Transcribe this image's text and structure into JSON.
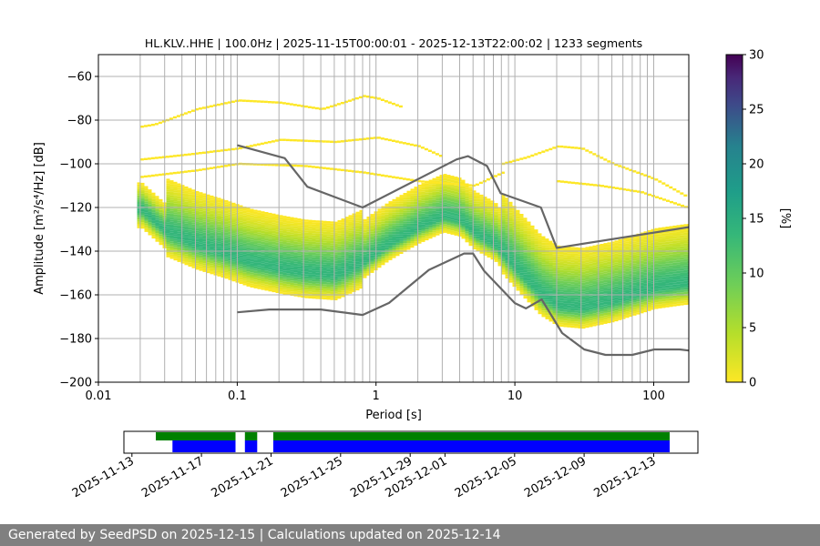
{
  "chart_data": {
    "type": "heatmap",
    "title": "HL.KLV..HHE | 100.0Hz | 2025-11-15T00:00:01 - 2025-12-13T22:00:02 | 1233 segments",
    "xlabel": "Period [s]",
    "ylabel": "Amplitude [m²/s⁴/Hz] [dB]",
    "x_scale": "log",
    "xlim": [
      0.01,
      179
    ],
    "ylim": [
      -200,
      -50
    ],
    "x_ticks": [
      {
        "v": 0.01,
        "label": "0.01"
      },
      {
        "v": 0.1,
        "label": "0.1"
      },
      {
        "v": 1,
        "label": "1"
      },
      {
        "v": 10,
        "label": "10"
      },
      {
        "v": 100,
        "label": "100"
      }
    ],
    "y_ticks": [
      -60,
      -80,
      -100,
      -120,
      -140,
      -160,
      -180,
      -200
    ],
    "grid": true,
    "colorbar": {
      "label": "[%]",
      "min": 0,
      "max": 30,
      "ticks": [
        0,
        5,
        10,
        15,
        20,
        25,
        30
      ]
    },
    "mode_curve": {
      "period": [
        0.02,
        0.03,
        0.05,
        0.08,
        0.12,
        0.2,
        0.3,
        0.5,
        0.8,
        1.2,
        2,
        3,
        4,
        5,
        7,
        10,
        15,
        20,
        30,
        50,
        100,
        170
      ],
      "db": [
        -121,
        -131,
        -137,
        -141,
        -145,
        -148,
        -150,
        -151,
        -145,
        -137,
        -129,
        -124,
        -126,
        -132,
        -137,
        -148,
        -160,
        -165,
        -166,
        -163,
        -157,
        -155
      ]
    },
    "nlnm": {
      "period": [
        0.1,
        0.17,
        0.4,
        0.8,
        1.24,
        2.4,
        4.3,
        5,
        6,
        10,
        12,
        15.6,
        21.9,
        31.6,
        45,
        70,
        101,
        154,
        179
      ],
      "db": [
        -168,
        -166.7,
        -166.7,
        -169.2,
        -163.7,
        -148.6,
        -141.1,
        -141.1,
        -149,
        -163.8,
        -166.2,
        -162.1,
        -177.5,
        -185,
        -187.5,
        -187.5,
        -185,
        -185,
        -185.5
      ]
    },
    "nhnm": {
      "period": [
        0.1,
        0.22,
        0.32,
        0.8,
        3.8,
        4.6,
        6.3,
        7.9,
        15.4,
        20,
        179
      ],
      "db": [
        -91.5,
        -97.4,
        -110.5,
        -120,
        -98,
        -96.5,
        -101,
        -113.5,
        -120,
        -138.5,
        -129
      ]
    },
    "availability": {
      "x_ticks": [
        "2025-11-13",
        "2025-11-17",
        "2025-11-21",
        "2025-11-25",
        "2025-11-29",
        "2025-12-01",
        "2025-12-05",
        "2025-12-09",
        "2025-12-13"
      ],
      "x_range": [
        "2025-11-12T13:00",
        "2025-12-15T13:00"
      ],
      "data_ranges": [
        [
          "2025-11-14T09:00",
          "2025-11-18T23:00"
        ],
        [
          "2025-11-19T12:00",
          "2025-11-20T05:00"
        ],
        [
          "2025-11-21T03:00",
          "2025-12-13T22:00"
        ]
      ],
      "psd_ranges": [
        [
          "2025-11-15T08:00",
          "2025-11-18T23:00"
        ],
        [
          "2025-11-19T12:00",
          "2025-11-20T05:00"
        ],
        [
          "2025-11-21T03:00",
          "2025-12-13T22:00"
        ]
      ],
      "colors": {
        "data": "#008000",
        "psd": "#0000ff"
      }
    }
  },
  "footer": {
    "text": "Generated by SeedPSD on 2025-12-15 | Calculations updated on 2025-12-14"
  }
}
